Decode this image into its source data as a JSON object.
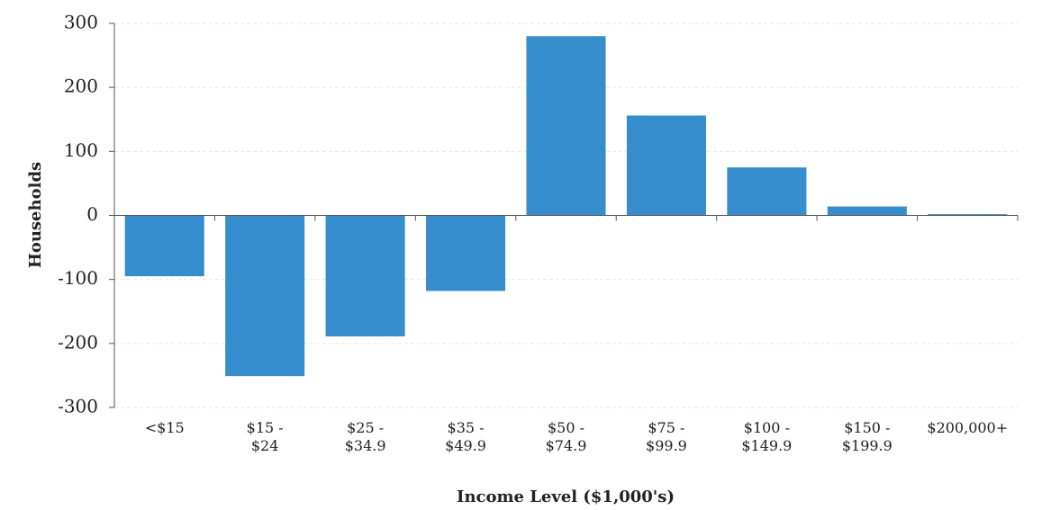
{
  "chart_data": {
    "type": "bar",
    "x_label": "Income Level ($1,000's)",
    "y_label": "Households",
    "categories": [
      "<$15",
      "$15 -\n$24",
      "$25 -\n$34.9",
      "$35 -\n$49.9",
      "$50 -\n$74.9",
      "$75 -\n$99.9",
      "$100 -\n$149.9",
      "$150 -\n$199.9",
      "$200,000+"
    ],
    "values": [
      -95,
      -251,
      -189,
      -118,
      280,
      156,
      75,
      14,
      2
    ],
    "color": "#368dcd",
    "ylim": [
      -300,
      300
    ],
    "yticks": [
      -300,
      -200,
      -100,
      0,
      100,
      200,
      300
    ],
    "grid": true
  }
}
